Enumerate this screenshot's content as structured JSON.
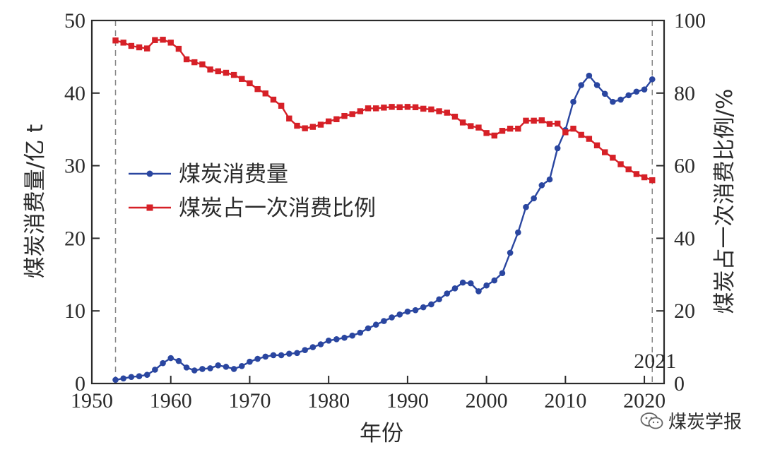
{
  "chart_data": {
    "type": "line",
    "xlabel": "年份",
    "ylabel_left": "煤炭消费量/亿 t",
    "ylabel_right": "煤炭占一次消费比例/%",
    "xlim": [
      1950,
      2022.5
    ],
    "ylim_left": [
      0,
      50
    ],
    "ylim_right": [
      0,
      100
    ],
    "x_ticks": [
      1950,
      1960,
      1970,
      1980,
      1990,
      2000,
      2010,
      2020
    ],
    "y_ticks_left": [
      0,
      10,
      20,
      30,
      40,
      50
    ],
    "y_ticks_right": [
      0,
      20,
      40,
      60,
      80,
      100
    ],
    "reference_lines": [
      1953,
      2021
    ],
    "annotation": "2021",
    "legend": [
      "煤炭消费量",
      "煤炭占一次消费比例"
    ],
    "series": [
      {
        "name": "煤炭消费量",
        "axis": "left",
        "color": "#2a46a0",
        "marker": "circle",
        "x": [
          1953,
          1954,
          1955,
          1956,
          1957,
          1958,
          1959,
          1960,
          1961,
          1962,
          1963,
          1964,
          1965,
          1966,
          1967,
          1968,
          1969,
          1970,
          1971,
          1972,
          1973,
          1974,
          1975,
          1976,
          1977,
          1978,
          1979,
          1980,
          1981,
          1982,
          1983,
          1984,
          1985,
          1986,
          1987,
          1988,
          1989,
          1990,
          1991,
          1992,
          1993,
          1994,
          1995,
          1996,
          1997,
          1998,
          1999,
          2000,
          2001,
          2002,
          2003,
          2004,
          2005,
          2006,
          2007,
          2008,
          2009,
          2010,
          2011,
          2012,
          2013,
          2014,
          2015,
          2016,
          2017,
          2018,
          2019,
          2020,
          2021
        ],
        "values": [
          0.5,
          0.7,
          0.9,
          1.0,
          1.2,
          1.9,
          2.8,
          3.5,
          3.1,
          2.2,
          1.8,
          2.0,
          2.1,
          2.5,
          2.3,
          2.0,
          2.4,
          3.0,
          3.4,
          3.7,
          3.9,
          3.9,
          4.1,
          4.2,
          4.6,
          5.0,
          5.4,
          5.9,
          6.1,
          6.3,
          6.6,
          7.0,
          7.6,
          8.1,
          8.6,
          9.1,
          9.5,
          9.9,
          10.1,
          10.5,
          10.9,
          11.6,
          12.4,
          13.1,
          13.9,
          13.8,
          12.7,
          13.5,
          14.2,
          15.2,
          18.0,
          20.8,
          24.3,
          25.5,
          27.3,
          28.1,
          32.4,
          34.9,
          38.8,
          41.1,
          42.4,
          41.1,
          39.9,
          38.8,
          39.1,
          39.7,
          40.2,
          40.5,
          41.9
        ]
      },
      {
        "name": "煤炭占一次消费比例",
        "axis": "right",
        "color": "#d62027",
        "marker": "square",
        "x": [
          1953,
          1954,
          1955,
          1956,
          1957,
          1958,
          1959,
          1960,
          1961,
          1962,
          1963,
          1964,
          1965,
          1966,
          1967,
          1968,
          1969,
          1970,
          1971,
          1972,
          1973,
          1974,
          1975,
          1976,
          1977,
          1978,
          1979,
          1980,
          1981,
          1982,
          1983,
          1984,
          1985,
          1986,
          1987,
          1988,
          1989,
          1990,
          1991,
          1992,
          1993,
          1994,
          1995,
          1996,
          1997,
          1998,
          1999,
          2000,
          2001,
          2002,
          2003,
          2004,
          2005,
          2006,
          2007,
          2008,
          2009,
          2010,
          2011,
          2012,
          2013,
          2014,
          2015,
          2016,
          2017,
          2018,
          2019,
          2020,
          2021
        ],
        "values": [
          94.5,
          93.9,
          93.0,
          92.6,
          92.3,
          94.6,
          94.7,
          93.9,
          92.2,
          89.3,
          88.5,
          87.9,
          86.5,
          86.0,
          85.6,
          85.0,
          83.9,
          82.7,
          81.1,
          79.9,
          78.2,
          76.5,
          73.0,
          71.0,
          70.3,
          70.7,
          71.3,
          72.2,
          72.8,
          73.7,
          74.2,
          75.0,
          75.8,
          75.8,
          76.0,
          76.2,
          76.1,
          76.2,
          76.1,
          75.7,
          75.5,
          75.0,
          74.6,
          73.5,
          71.9,
          70.9,
          70.5,
          69.0,
          68.3,
          69.6,
          70.2,
          70.2,
          72.4,
          72.4,
          72.5,
          71.5,
          71.6,
          69.2,
          70.2,
          68.5,
          67.4,
          65.6,
          63.7,
          62.2,
          60.4,
          59.0,
          57.7,
          56.8,
          56.0
        ]
      }
    ]
  },
  "watermark": "煤炭学报"
}
